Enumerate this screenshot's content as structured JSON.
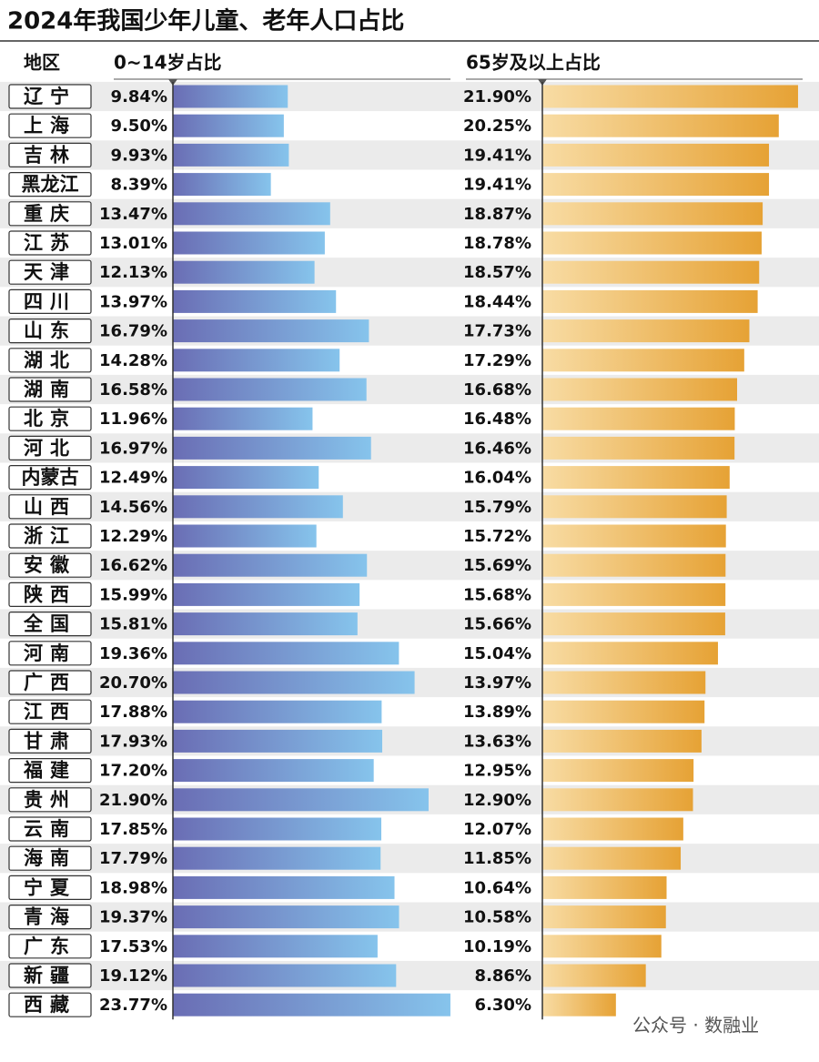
{
  "chart_data": {
    "type": "bar",
    "orientation": "horizontal",
    "title": "2024年我国少年儿童、老年人口占比",
    "category_header": "地区",
    "categories": [
      "辽宁",
      "上海",
      "吉林",
      "黑龙江",
      "重庆",
      "江苏",
      "天津",
      "四川",
      "山东",
      "湖北",
      "湖南",
      "北京",
      "河北",
      "内蒙古",
      "山西",
      "浙江",
      "安徽",
      "陕西",
      "全国",
      "河南",
      "广西",
      "江西",
      "甘肃",
      "福建",
      "贵州",
      "云南",
      "海南",
      "宁夏",
      "青海",
      "广东",
      "新疆",
      "西藏"
    ],
    "series": [
      {
        "name": "0~14岁占比",
        "colors": [
          "#6a6db4",
          "#86c4ec"
        ],
        "values": [
          9.84,
          9.5,
          9.93,
          8.39,
          13.47,
          13.01,
          12.13,
          13.97,
          16.79,
          14.28,
          16.58,
          11.96,
          16.97,
          12.49,
          14.56,
          12.29,
          16.62,
          15.99,
          15.81,
          19.36,
          20.7,
          17.88,
          17.93,
          17.2,
          21.9,
          17.85,
          17.79,
          18.98,
          19.37,
          17.53,
          19.12,
          23.77
        ],
        "value_labels": [
          "9.84%",
          "9.50%",
          "9.93%",
          "8.39%",
          "13.47%",
          "13.01%",
          "12.13%",
          "13.97%",
          "16.79%",
          "14.28%",
          "16.58%",
          "11.96%",
          "16.97%",
          "12.49%",
          "14.56%",
          "12.29%",
          "16.62%",
          "15.99%",
          "15.81%",
          "19.36%",
          "20.70%",
          "17.88%",
          "17.93%",
          "17.20%",
          "21.90%",
          "17.85%",
          "17.79%",
          "18.98%",
          "19.37%",
          "17.53%",
          "19.12%",
          "23.77%"
        ]
      },
      {
        "name": "65岁及以上占比",
        "colors": [
          "#f8dca4",
          "#e6a235"
        ],
        "values": [
          21.9,
          20.25,
          19.41,
          19.41,
          18.87,
          18.78,
          18.57,
          18.44,
          17.73,
          17.29,
          16.68,
          16.48,
          16.46,
          16.04,
          15.79,
          15.72,
          15.69,
          15.68,
          15.66,
          15.04,
          13.97,
          13.89,
          13.63,
          12.95,
          12.9,
          12.07,
          11.85,
          10.64,
          10.58,
          10.19,
          8.86,
          6.3
        ],
        "value_labels": [
          "21.90%",
          "20.25%",
          "19.41%",
          "19.41%",
          "18.87%",
          "18.78%",
          "18.57%",
          "18.44%",
          "17.73%",
          "17.29%",
          "16.68%",
          "16.48%",
          "16.46%",
          "16.04%",
          "15.79%",
          "15.72%",
          "15.69%",
          "15.68%",
          "15.66%",
          "15.04%",
          "13.97%",
          "13.89%",
          "13.63%",
          "12.95%",
          "12.90%",
          "12.07%",
          "11.85%",
          "10.64%",
          "10.58%",
          "10.19%",
          "8.86%",
          "6.30%"
        ]
      }
    ],
    "watermark": "公众号 · 数融业"
  }
}
